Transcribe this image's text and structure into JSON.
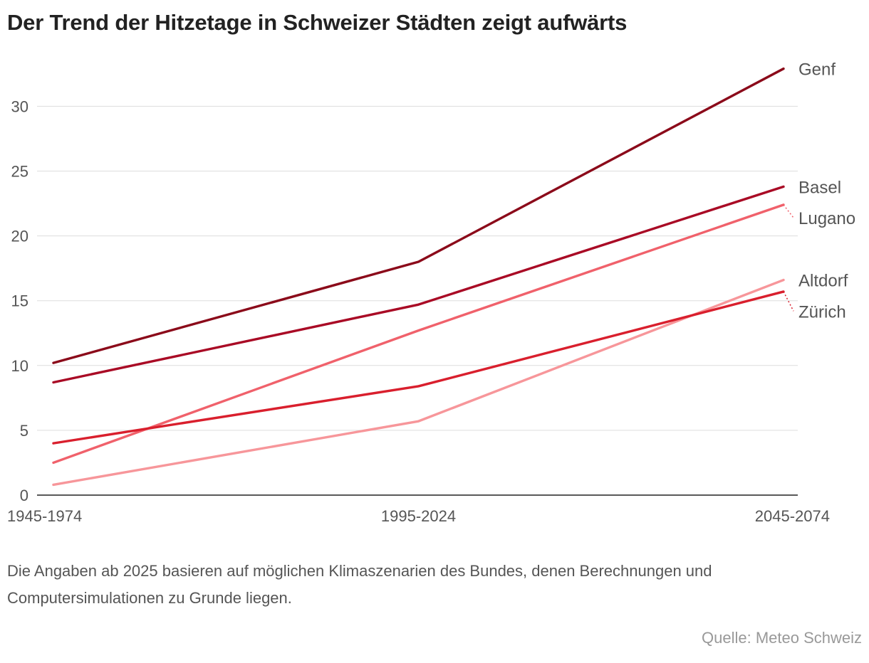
{
  "title": "Der Trend der Hitzetage in Schweizer Städten zeigt aufwärts",
  "note": "Die Angaben ab 2025 basieren auf möglichen Klimaszenarien des Bundes, denen Berechnungen und Computersimulationen zu Grunde liegen.",
  "source": "Quelle: Meteo Schweiz",
  "chart_data": {
    "type": "line",
    "title": "Der Trend der Hitzetage in Schweizer Städten zeigt aufwärts",
    "xlabel": "",
    "ylabel": "",
    "categories": [
      "1945-1974",
      "1995-2024",
      "2045-2074"
    ],
    "ylim": [
      0,
      33
    ],
    "yticks": [
      0,
      5,
      10,
      15,
      20,
      25,
      30
    ],
    "grid": true,
    "legend": "direct labels at line ends (right)",
    "series": [
      {
        "name": "Genf",
        "values": [
          10.2,
          18.0,
          32.9
        ],
        "color": "#8b0a1a"
      },
      {
        "name": "Basel",
        "values": [
          8.7,
          14.7,
          23.8
        ],
        "color": "#a90a25"
      },
      {
        "name": "Lugano",
        "values": [
          2.5,
          12.7,
          22.4
        ],
        "color": "#f0616b"
      },
      {
        "name": "Altdorf",
        "values": [
          0.8,
          5.7,
          16.6
        ],
        "color": "#f7969a"
      },
      {
        "name": "Zürich",
        "values": [
          4.0,
          8.4,
          15.7
        ],
        "color": "#d91f2d"
      }
    ]
  }
}
